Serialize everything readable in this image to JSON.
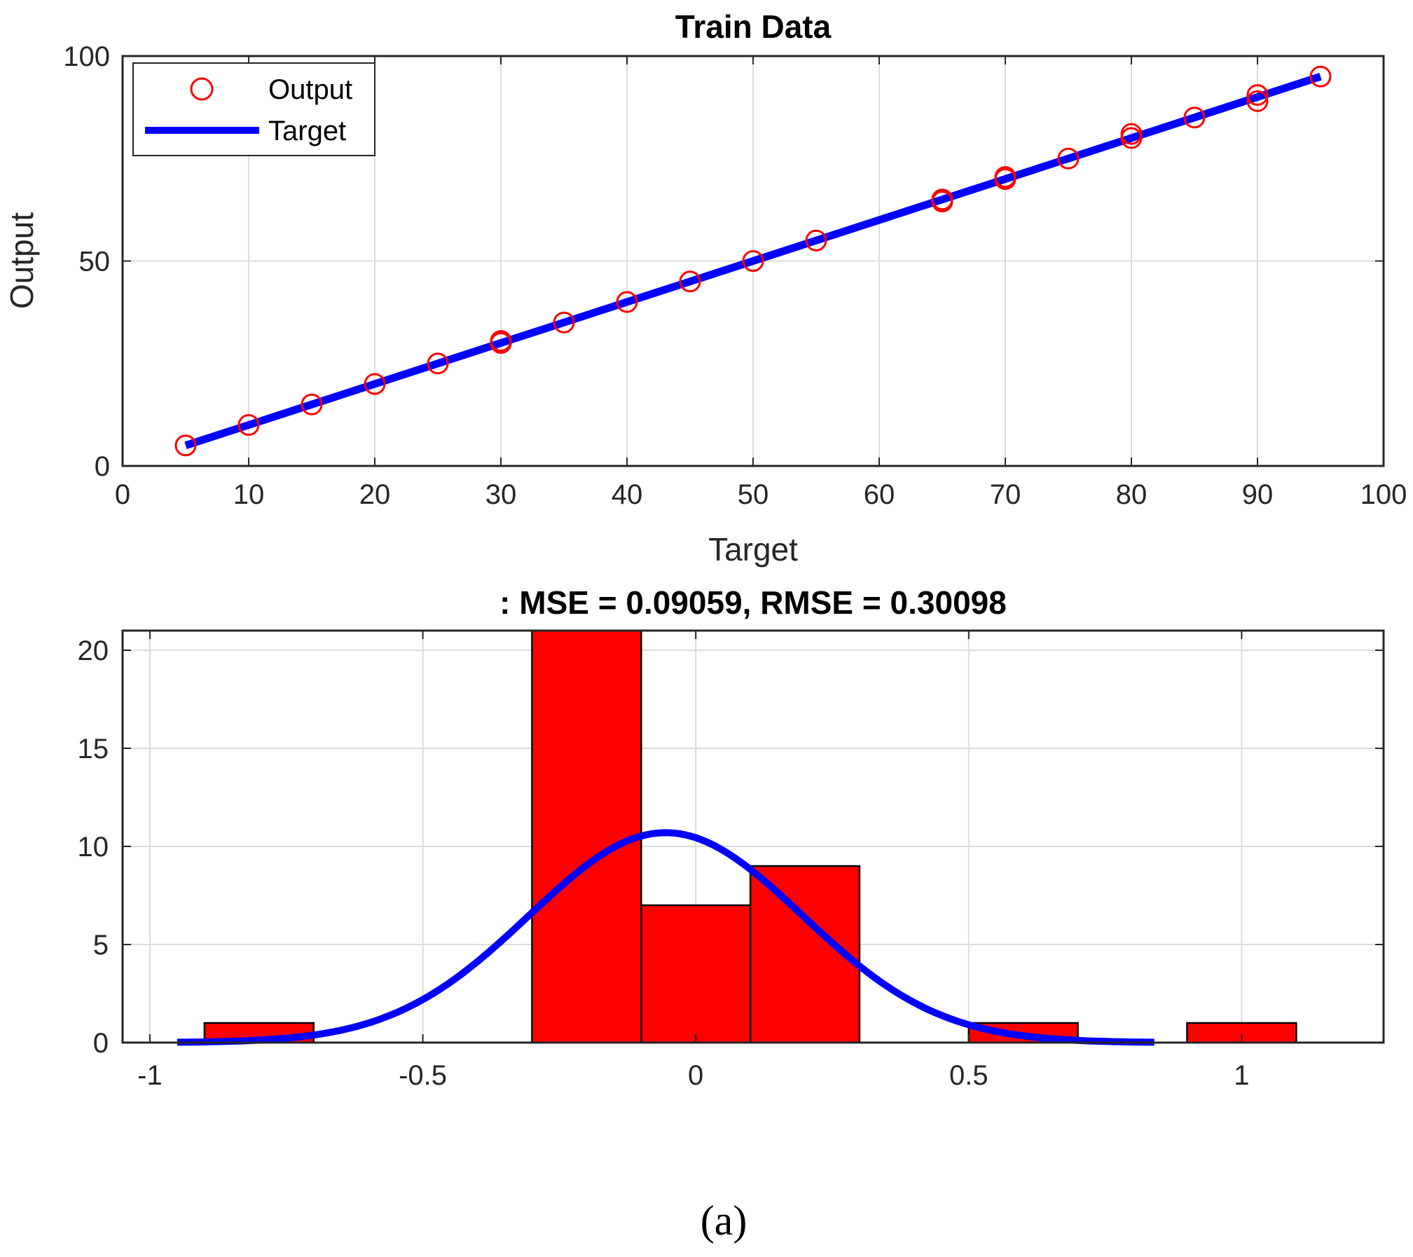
{
  "chart_data": [
    {
      "type": "scatter",
      "title": "Train Data",
      "xlabel": "Target",
      "ylabel": "Output",
      "xlim": [
        0,
        100
      ],
      "ylim": [
        0,
        100
      ],
      "xticks": [
        "0",
        "10",
        "20",
        "30",
        "40",
        "50",
        "60",
        "70",
        "80",
        "90",
        "100"
      ],
      "yticks": [
        "0",
        "50",
        "100"
      ],
      "grid": true,
      "legend": {
        "position": "top-left",
        "entries": [
          "Output",
          "Target"
        ]
      },
      "series": [
        {
          "name": "Output",
          "style": "circle",
          "color": "#ff0000",
          "points": [
            [
              5,
              5
            ],
            [
              10,
              10
            ],
            [
              15,
              15
            ],
            [
              20,
              20
            ],
            [
              25,
              25
            ],
            [
              30,
              30
            ],
            [
              30,
              30.5
            ],
            [
              35,
              35
            ],
            [
              40,
              40
            ],
            [
              45,
              45
            ],
            [
              50,
              50
            ],
            [
              55,
              55
            ],
            [
              65,
              64.5
            ],
            [
              65,
              65
            ],
            [
              70,
              70
            ],
            [
              70,
              70.5
            ],
            [
              75,
              75
            ],
            [
              80,
              80
            ],
            [
              80,
              81
            ],
            [
              85,
              85
            ],
            [
              90,
              89
            ],
            [
              90,
              90.5
            ],
            [
              95,
              95
            ]
          ]
        },
        {
          "name": "Target",
          "style": "line",
          "color": "#0000ff",
          "points": [
            [
              5,
              5
            ],
            [
              95,
              95
            ]
          ]
        }
      ]
    },
    {
      "type": "bar",
      "title": ": MSE = 0.09059, RMSE = 0.30098",
      "xlabel": "",
      "ylabel": "",
      "xlim": [
        -1.05,
        1.26
      ],
      "ylim": [
        0,
        21
      ],
      "xticks": [
        "-1",
        "-0.5",
        "0",
        "0.5",
        "1"
      ],
      "yticks": [
        "0",
        "5",
        "10",
        "15",
        "20"
      ],
      "grid": true,
      "bin_width": 0.2,
      "bar_color": "#ff0000",
      "bins": [
        {
          "center": -0.8,
          "count": 1
        },
        {
          "center": -0.2,
          "count": 21
        },
        {
          "center": 0.0,
          "count": 7
        },
        {
          "center": 0.2,
          "count": 9
        },
        {
          "center": 0.6,
          "count": 1
        },
        {
          "center": 1.0,
          "count": 1
        }
      ],
      "fit_curve": {
        "type": "normal",
        "color": "#0000ff",
        "mean": -0.055,
        "peak": 10.7,
        "sigma": 0.25,
        "range": [
          -0.95,
          0.84
        ]
      }
    }
  ],
  "caption": "(a)"
}
